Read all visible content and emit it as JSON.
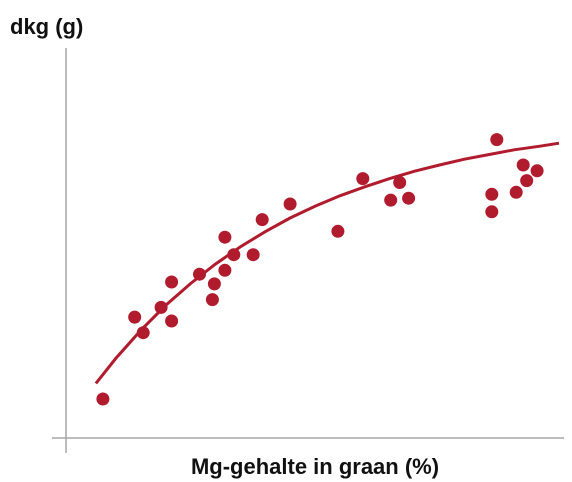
{
  "chart_data": {
    "type": "scatter",
    "title": "",
    "xlabel": "Mg-gehalte in graan (%)",
    "ylabel": "dkg (g)",
    "xlim": [
      0,
      100
    ],
    "ylim": [
      0,
      100
    ],
    "grid": false,
    "legend": "none",
    "point_color": "#b01c2e",
    "curve_color": "#b01c2e",
    "axis_color": "#a6a6a6",
    "points": [
      {
        "x": 7.4,
        "y": 10.0
      },
      {
        "x": 13.8,
        "y": 31.0
      },
      {
        "x": 15.5,
        "y": 27.0
      },
      {
        "x": 19.1,
        "y": 33.5
      },
      {
        "x": 21.2,
        "y": 40.0
      },
      {
        "x": 21.2,
        "y": 30.0
      },
      {
        "x": 26.8,
        "y": 42.0
      },
      {
        "x": 29.4,
        "y": 35.5
      },
      {
        "x": 29.8,
        "y": 39.5
      },
      {
        "x": 31.9,
        "y": 43.0
      },
      {
        "x": 31.9,
        "y": 51.5
      },
      {
        "x": 33.7,
        "y": 47.0
      },
      {
        "x": 37.6,
        "y": 47.0
      },
      {
        "x": 39.4,
        "y": 56.0
      },
      {
        "x": 45.0,
        "y": 60.0
      },
      {
        "x": 54.6,
        "y": 53.0
      },
      {
        "x": 59.6,
        "y": 66.5
      },
      {
        "x": 65.2,
        "y": 61.0
      },
      {
        "x": 67.0,
        "y": 65.5
      },
      {
        "x": 68.8,
        "y": 61.5
      },
      {
        "x": 85.5,
        "y": 62.5
      },
      {
        "x": 85.5,
        "y": 58.0
      },
      {
        "x": 86.5,
        "y": 76.5
      },
      {
        "x": 90.4,
        "y": 63.0
      },
      {
        "x": 91.8,
        "y": 70.0
      },
      {
        "x": 92.5,
        "y": 66.0
      },
      {
        "x": 94.6,
        "y": 68.5
      }
    ],
    "trend_curve": {
      "type": "exponential-saturation",
      "x": [
        6,
        10,
        15,
        20,
        25,
        30,
        35,
        40,
        45,
        50,
        55,
        60,
        65,
        70,
        75,
        80,
        85,
        90,
        95,
        99
      ],
      "y": [
        14.0,
        20.4,
        27.6,
        34.0,
        39.6,
        44.6,
        49.0,
        52.9,
        56.4,
        59.4,
        62.1,
        64.4,
        66.5,
        68.4,
        70.0,
        71.5,
        72.7,
        73.9,
        74.8,
        75.6
      ]
    }
  }
}
